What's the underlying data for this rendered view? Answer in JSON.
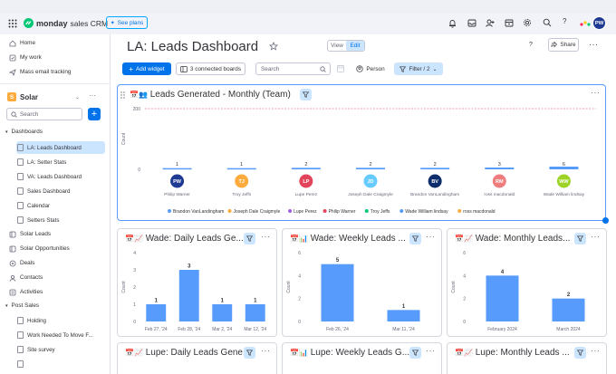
{
  "topbar": {
    "brand": "monday",
    "product": "sales CRM",
    "see_plans": "See plans",
    "avatar": "PW"
  },
  "sidebar": {
    "top_items": [
      "Home",
      "My work",
      "Mass email tracking"
    ],
    "workspace": {
      "badge": "S",
      "name": "Solar"
    },
    "search_placeholder": "Search",
    "folder_dashboards": "Dashboards",
    "dashboard_items": [
      "LA: Leads Dashboard",
      "LA: Setter Stats",
      "VA: Leads Dashboard",
      "Sales Dashboard",
      "Calendar",
      "Setters Stats"
    ],
    "board_items": [
      "Solar Leads",
      "Solar Opportunities",
      "Deals",
      "Contacts",
      "Activities"
    ],
    "folder_post_sales": "Post Sales",
    "post_sales_items": [
      "Holding",
      "Work Needed To Move F...",
      "Site survey"
    ]
  },
  "header": {
    "title": "LA: Leads Dashboard",
    "view_label": "View",
    "edit_label": "Edit",
    "help": "?",
    "share_label": "Share"
  },
  "toolbar": {
    "add_widget": "Add widget",
    "connected_boards": "3 connected boards",
    "search_placeholder": "Search",
    "person_label": "Person",
    "filter_label": "Filter / 2"
  },
  "widget_main": {
    "title": "Leads Generated - Monthly (Team)",
    "emoji": "📅👥",
    "y_label": "Count",
    "chart_data": {
      "type": "bar",
      "ylim": [
        0,
        200
      ],
      "yticks": [
        "200",
        "0"
      ],
      "people": [
        {
          "initials": "PW",
          "name": "Philip Warner",
          "count": 1,
          "color": "#1f3a93"
        },
        {
          "initials": "TJ",
          "name": "Troy Jeffs",
          "count": 1,
          "color": "#fdab3d"
        },
        {
          "initials": "LP",
          "name": "Lupe Perez",
          "count": 2,
          "color": "#e2445c"
        },
        {
          "initials": "JD",
          "name": "Joseph Dale Craigmyle",
          "count": 2,
          "color": "#66ccff"
        },
        {
          "initials": "BV",
          "name": "Brandon VanLandingham",
          "count": 2,
          "color": "#0d2c6b"
        },
        {
          "initials": "RM",
          "name": "ross macdonald",
          "count": 3,
          "color": "#f07d7d"
        },
        {
          "initials": "WW",
          "name": "Wade William lindsay",
          "count": 6,
          "color": "#9cd326"
        }
      ],
      "legend": [
        {
          "name": "Brandon VanLandingham",
          "color": "#579bfc"
        },
        {
          "name": "Joseph Dale Craigmyle",
          "color": "#fdab3d"
        },
        {
          "name": "Lupe Perez",
          "color": "#a25ddc"
        },
        {
          "name": "Philip Warner",
          "color": "#e2445c"
        },
        {
          "name": "Troy Jeffs",
          "color": "#00c875"
        },
        {
          "name": "Wade William lindsay",
          "color": "#579bfc"
        },
        {
          "name": "ross macdonald",
          "color": "#fdab3d"
        }
      ]
    }
  },
  "widgets": [
    {
      "title": "Wade: Daily Leads Ge...",
      "emoji": "📅📈",
      "y_label": "Count",
      "chart_data": {
        "type": "bar",
        "categories": [
          "Feb 27, '24",
          "Feb 28, '24",
          "Mar 2, '24",
          "Mar 12, '24"
        ],
        "values": [
          1,
          3,
          1,
          1
        ],
        "ylim": [
          0,
          4
        ],
        "yticks": [
          0,
          1,
          2,
          3,
          4
        ]
      }
    },
    {
      "title": "Wade: Weekly Leads ...",
      "emoji": "📅📊",
      "y_label": "Count",
      "chart_data": {
        "type": "bar",
        "categories": [
          "Feb 26, '24",
          "Mar 11, '24"
        ],
        "values": [
          5,
          1
        ],
        "ylim": [
          0,
          6
        ],
        "yticks": [
          0,
          2,
          4,
          6
        ]
      }
    },
    {
      "title": "Wade: Monthly Leads...",
      "emoji": "📅📈",
      "y_label": "Count",
      "chart_data": {
        "type": "bar",
        "categories": [
          "February 2024",
          "March 2024"
        ],
        "values": [
          4,
          2
        ],
        "ylim": [
          0,
          6
        ],
        "yticks": [
          0,
          2,
          4,
          6
        ]
      }
    },
    {
      "title": "Lupe: Daily Leads Gene...",
      "emoji": "📅📈"
    },
    {
      "title": "Lupe: Weekly Leads G...",
      "emoji": "📅📊"
    },
    {
      "title": "Lupe: Monthly Leads ...",
      "emoji": "📅📈"
    }
  ]
}
